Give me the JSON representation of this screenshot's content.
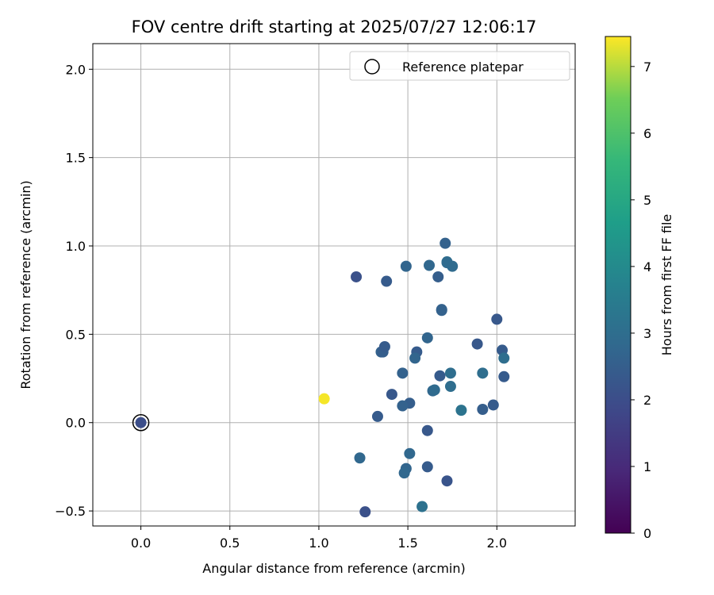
{
  "chart_data": {
    "type": "scatter",
    "title": "FOV centre drift starting at 2025/07/27 12:06:17",
    "xlabel": "Angular distance from reference (arcmin)",
    "ylabel": "Rotation from reference (arcmin)",
    "xlim": [
      -0.27,
      2.44
    ],
    "ylim": [
      -0.585,
      2.145
    ],
    "x_ticks": [
      0.0,
      0.5,
      1.0,
      1.5,
      2.0
    ],
    "x_tick_labels": [
      "0.0",
      "0.5",
      "1.0",
      "1.5",
      "2.0"
    ],
    "y_ticks": [
      -0.5,
      0.0,
      0.5,
      1.0,
      1.5,
      2.0
    ],
    "y_tick_labels": [
      "−0.5",
      "0.0",
      "0.5",
      "1.0",
      "1.5",
      "2.0"
    ],
    "grid": true,
    "legend_position": "top-right",
    "legend": {
      "label": "Reference platepar"
    },
    "colorbar": {
      "label": "Hours from first FF file",
      "colormap": "viridis",
      "range": [
        0,
        7.45
      ],
      "ticks": [
        0,
        1,
        2,
        3,
        4,
        5,
        6,
        7
      ],
      "tick_labels": [
        "0",
        "1",
        "2",
        "3",
        "4",
        "5",
        "6",
        "7"
      ]
    },
    "reference": {
      "x": 0.0,
      "y": 0.0,
      "hours": 2.0
    },
    "points": [
      {
        "x": 1.03,
        "y": 0.135,
        "hours": 7.4
      },
      {
        "x": 1.21,
        "y": 0.825,
        "hours": 2.1
      },
      {
        "x": 1.38,
        "y": 0.8,
        "hours": 2.4
      },
      {
        "x": 1.49,
        "y": 0.885,
        "hours": 2.7
      },
      {
        "x": 1.62,
        "y": 0.89,
        "hours": 2.8
      },
      {
        "x": 1.67,
        "y": 0.825,
        "hours": 2.5
      },
      {
        "x": 1.71,
        "y": 1.015,
        "hours": 2.6
      },
      {
        "x": 1.72,
        "y": 0.91,
        "hours": 3.0
      },
      {
        "x": 1.72,
        "y": 0.905,
        "hours": 2.9
      },
      {
        "x": 1.75,
        "y": 0.885,
        "hours": 2.9
      },
      {
        "x": 1.69,
        "y": 0.64,
        "hours": 2.6
      },
      {
        "x": 1.69,
        "y": 0.635,
        "hours": 2.6
      },
      {
        "x": 2.0,
        "y": 0.585,
        "hours": 2.3
      },
      {
        "x": 1.61,
        "y": 0.48,
        "hours": 2.7
      },
      {
        "x": 1.89,
        "y": 0.445,
        "hours": 2.3
      },
      {
        "x": 1.35,
        "y": 0.4,
        "hours": 2.6
      },
      {
        "x": 1.36,
        "y": 0.4,
        "hours": 2.5
      },
      {
        "x": 1.37,
        "y": 0.43,
        "hours": 2.4
      },
      {
        "x": 1.55,
        "y": 0.4,
        "hours": 2.4
      },
      {
        "x": 1.54,
        "y": 0.365,
        "hours": 2.7
      },
      {
        "x": 2.03,
        "y": 0.41,
        "hours": 2.4
      },
      {
        "x": 2.04,
        "y": 0.365,
        "hours": 3.0
      },
      {
        "x": 1.47,
        "y": 0.28,
        "hours": 2.6
      },
      {
        "x": 1.68,
        "y": 0.265,
        "hours": 2.4
      },
      {
        "x": 1.74,
        "y": 0.28,
        "hours": 3.0
      },
      {
        "x": 1.92,
        "y": 0.28,
        "hours": 3.0
      },
      {
        "x": 2.04,
        "y": 0.26,
        "hours": 2.4
      },
      {
        "x": 1.64,
        "y": 0.18,
        "hours": 2.8
      },
      {
        "x": 1.65,
        "y": 0.185,
        "hours": 2.9
      },
      {
        "x": 1.74,
        "y": 0.205,
        "hours": 3.0
      },
      {
        "x": 1.41,
        "y": 0.16,
        "hours": 2.3
      },
      {
        "x": 1.51,
        "y": 0.11,
        "hours": 2.5
      },
      {
        "x": 1.47,
        "y": 0.095,
        "hours": 2.6
      },
      {
        "x": 1.8,
        "y": 0.07,
        "hours": 3.2
      },
      {
        "x": 1.92,
        "y": 0.075,
        "hours": 2.5
      },
      {
        "x": 1.98,
        "y": 0.1,
        "hours": 2.4
      },
      {
        "x": 1.33,
        "y": 0.035,
        "hours": 2.4
      },
      {
        "x": 1.61,
        "y": -0.045,
        "hours": 2.3
      },
      {
        "x": 1.51,
        "y": -0.175,
        "hours": 2.8
      },
      {
        "x": 1.23,
        "y": -0.2,
        "hours": 2.8
      },
      {
        "x": 1.49,
        "y": -0.26,
        "hours": 2.7
      },
      {
        "x": 1.48,
        "y": -0.285,
        "hours": 2.8
      },
      {
        "x": 1.61,
        "y": -0.25,
        "hours": 2.4
      },
      {
        "x": 1.72,
        "y": -0.33,
        "hours": 2.2
      },
      {
        "x": 1.58,
        "y": -0.475,
        "hours": 3.1
      },
      {
        "x": 1.26,
        "y": -0.505,
        "hours": 2.1
      }
    ]
  }
}
